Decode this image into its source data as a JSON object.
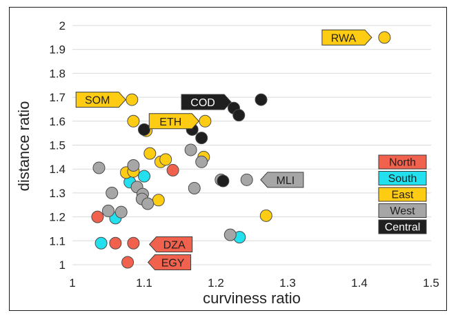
{
  "chart_data": {
    "type": "scatter",
    "title": "",
    "xlabel": "curviness ratio",
    "ylabel": "distance ratio",
    "xlim": [
      1,
      1.5
    ],
    "ylim": [
      1,
      2
    ],
    "xticks": [
      "1",
      "1.1",
      "1.2",
      "1.3",
      "1.4",
      "1.5"
    ],
    "yticks": [
      "1",
      "1.1",
      "1.2",
      "1.3",
      "1.4",
      "1.5",
      "1.6",
      "1.7",
      "1.8",
      "1.9",
      "2"
    ],
    "grid": "horizontal",
    "legend_position": "right",
    "colors": {
      "North": "#f0624d",
      "South": "#22e0ee",
      "East": "#ffcc14",
      "West": "#a6a6a6",
      "Central": "#1f1f1f"
    },
    "series": [
      {
        "name": "North",
        "points": [
          {
            "x": 1.035,
            "y": 1.2
          },
          {
            "x": 1.06,
            "y": 1.09
          },
          {
            "x": 1.085,
            "y": 1.09
          },
          {
            "x": 1.077,
            "y": 1.01
          },
          {
            "x": 1.14,
            "y": 1.395
          }
        ]
      },
      {
        "name": "South",
        "points": [
          {
            "x": 1.04,
            "y": 1.09
          },
          {
            "x": 1.06,
            "y": 1.195
          },
          {
            "x": 1.08,
            "y": 1.345
          },
          {
            "x": 1.1,
            "y": 1.37
          },
          {
            "x": 1.233,
            "y": 1.115
          }
        ]
      },
      {
        "name": "East",
        "points": [
          {
            "x": 1.435,
            "y": 1.95
          },
          {
            "x": 1.083,
            "y": 1.69
          },
          {
            "x": 1.085,
            "y": 1.6
          },
          {
            "x": 1.103,
            "y": 1.56
          },
          {
            "x": 1.185,
            "y": 1.6
          },
          {
            "x": 1.108,
            "y": 1.465
          },
          {
            "x": 1.123,
            "y": 1.43
          },
          {
            "x": 1.13,
            "y": 1.44
          },
          {
            "x": 1.183,
            "y": 1.45
          },
          {
            "x": 1.075,
            "y": 1.385
          },
          {
            "x": 1.085,
            "y": 1.39
          },
          {
            "x": 1.12,
            "y": 1.27
          },
          {
            "x": 1.27,
            "y": 1.205
          }
        ]
      },
      {
        "name": "West",
        "points": [
          {
            "x": 1.037,
            "y": 1.405
          },
          {
            "x": 1.085,
            "y": 1.415
          },
          {
            "x": 1.055,
            "y": 1.3
          },
          {
            "x": 1.09,
            "y": 1.325
          },
          {
            "x": 1.098,
            "y": 1.295
          },
          {
            "x": 1.097,
            "y": 1.275
          },
          {
            "x": 1.105,
            "y": 1.255
          },
          {
            "x": 1.05,
            "y": 1.225
          },
          {
            "x": 1.068,
            "y": 1.22
          },
          {
            "x": 1.165,
            "y": 1.48
          },
          {
            "x": 1.18,
            "y": 1.43
          },
          {
            "x": 1.17,
            "y": 1.32
          },
          {
            "x": 1.207,
            "y": 1.355
          },
          {
            "x": 1.243,
            "y": 1.355
          },
          {
            "x": 1.22,
            "y": 1.125
          }
        ]
      },
      {
        "name": "Central",
        "points": [
          {
            "x": 1.263,
            "y": 1.69
          },
          {
            "x": 1.225,
            "y": 1.655
          },
          {
            "x": 1.232,
            "y": 1.625
          },
          {
            "x": 1.1,
            "y": 1.565
          },
          {
            "x": 1.167,
            "y": 1.565
          },
          {
            "x": 1.18,
            "y": 1.53
          },
          {
            "x": 1.21,
            "y": 1.35
          }
        ]
      }
    ],
    "annotations": [
      {
        "label": "RWA",
        "x": 1.435,
        "y": 1.95,
        "fill": "#ffcc14",
        "text": "#1f1f1f",
        "side": "left",
        "tail_x": 1.348
      },
      {
        "label": "SOM",
        "x": 1.083,
        "y": 1.69,
        "fill": "#ffcc14",
        "text": "#1f1f1f",
        "side": "left",
        "tail_x": 1.005
      },
      {
        "label": "COD",
        "x": 1.225,
        "y": 1.68,
        "fill": "#1f1f1f",
        "text": "#ffffff",
        "side": "left",
        "tail_x": 1.152
      },
      {
        "label": "ETH",
        "x": 1.185,
        "y": 1.6,
        "fill": "#ffcc14",
        "text": "#1f1f1f",
        "side": "left",
        "tail_x": 1.107
      },
      {
        "label": "MLI",
        "x": 1.263,
        "y": 1.355,
        "fill": "#a6a6a6",
        "text": "#1f1f1f",
        "side": "right",
        "tail_x": 1.322
      },
      {
        "label": "DZA",
        "x": 1.095,
        "y": 1.085,
        "fill": "#f0624d",
        "text": "#1f1f1f",
        "side": "right",
        "tail_x": 1.167
      },
      {
        "label": "EGY",
        "x": 1.095,
        "y": 1.01,
        "fill": "#f0624d",
        "text": "#1f1f1f",
        "side": "right",
        "tail_x": 1.165
      }
    ],
    "legend": [
      {
        "label": "North",
        "color": "#f0624d",
        "text": "#1f1f1f"
      },
      {
        "label": "South",
        "color": "#22e0ee",
        "text": "#1f1f1f"
      },
      {
        "label": "East",
        "color": "#ffcc14",
        "text": "#1f1f1f"
      },
      {
        "label": "West",
        "color": "#a6a6a6",
        "text": "#1f1f1f"
      },
      {
        "label": "Central",
        "color": "#1f1f1f",
        "text": "#ffffff"
      }
    ]
  }
}
